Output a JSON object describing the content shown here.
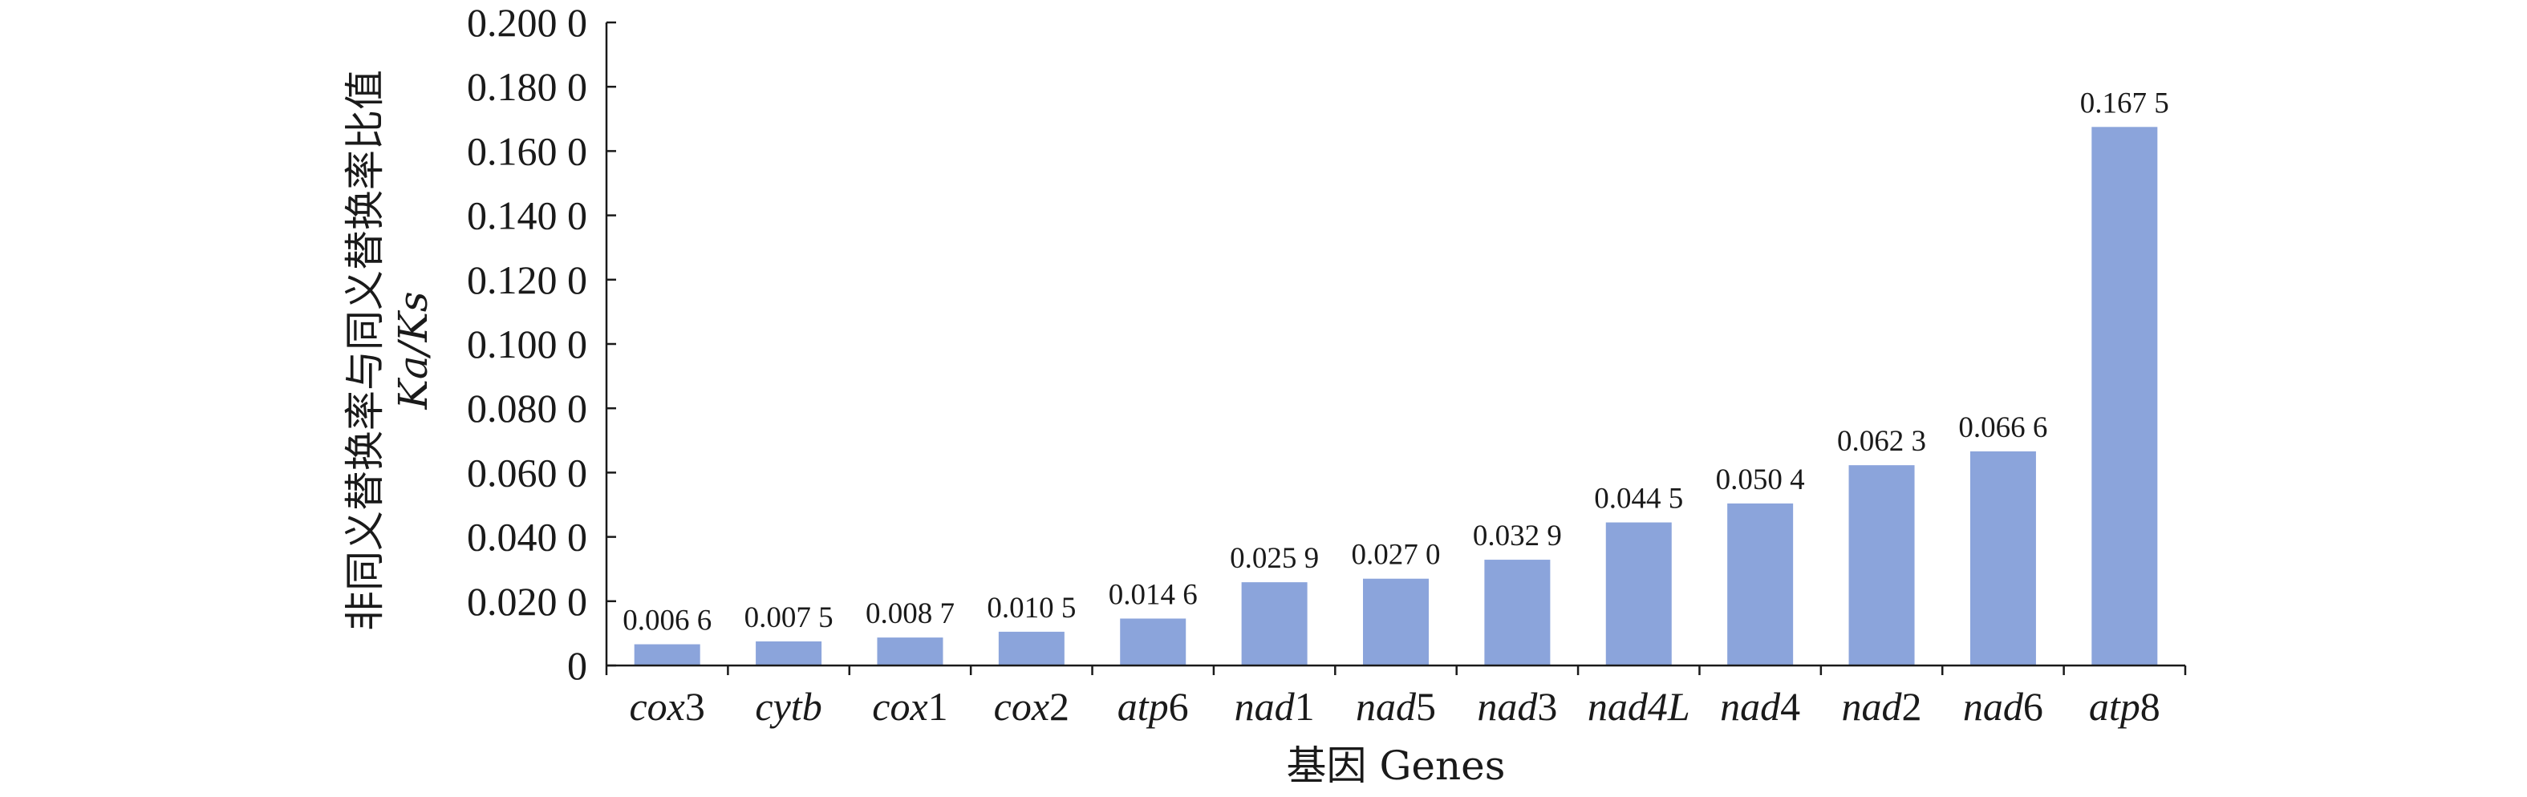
{
  "chart_data": {
    "type": "bar",
    "categories": [
      {
        "base": "cox",
        "suffix": "3"
      },
      {
        "base": "cytb",
        "suffix": ""
      },
      {
        "base": "cox",
        "suffix": "1"
      },
      {
        "base": "cox",
        "suffix": "2"
      },
      {
        "base": "atp",
        "suffix": "6"
      },
      {
        "base": "nad",
        "suffix": "1"
      },
      {
        "base": "nad",
        "suffix": "5"
      },
      {
        "base": "nad",
        "suffix": "3"
      },
      {
        "base": "nad4L",
        "suffix": ""
      },
      {
        "base": "nad",
        "suffix": "4"
      },
      {
        "base": "nad",
        "suffix": "2"
      },
      {
        "base": "nad",
        "suffix": "6"
      },
      {
        "base": "atp",
        "suffix": "8"
      }
    ],
    "values": [
      0.0066,
      0.0075,
      0.0087,
      0.0105,
      0.0146,
      0.0259,
      0.027,
      0.0329,
      0.0445,
      0.0504,
      0.0623,
      0.0666,
      0.1675
    ],
    "data_labels": [
      "0.006 6",
      "0.007 5",
      "0.008 7",
      "0.010 5",
      "0.014 6",
      "0.025 9",
      "0.027 0",
      "0.032 9",
      "0.044 5",
      "0.050 4",
      "0.062 3",
      "0.066 6",
      "0.167 5"
    ],
    "yticks": [
      0,
      0.02,
      0.04,
      0.06,
      0.08,
      0.1,
      0.12,
      0.14,
      0.16,
      0.18,
      0.2
    ],
    "ytick_labels": [
      "0",
      "0.020 0",
      "0.040 0",
      "0.060 0",
      "0.080 0",
      "0.100 0",
      "0.120 0",
      "0.140 0",
      "0.160 0",
      "0.180 0",
      "0.200 0"
    ],
    "ylim": [
      0,
      0.2
    ],
    "xlabel": "基因 Genes",
    "ylabel_line1": "非同义替换率与同义替换率比值",
    "ylabel_line2": "Ka/Ks",
    "bar_color": "#8BA4DB",
    "grid": false,
    "legend": "none"
  }
}
